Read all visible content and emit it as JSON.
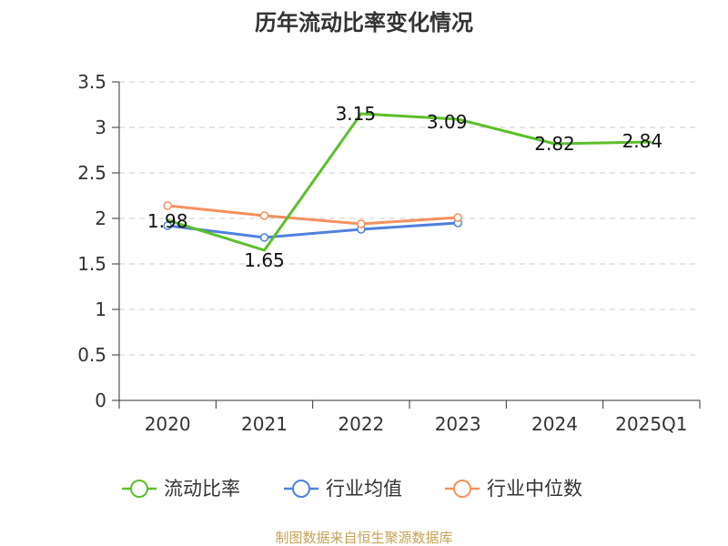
{
  "chart_data": {
    "type": "line",
    "title": "历年流动比率变化情况",
    "categories": [
      "2020",
      "2021",
      "2022",
      "2023",
      "2024",
      "2025Q1"
    ],
    "ylim": [
      0,
      3.5
    ],
    "yticks": [
      "0",
      "0.5",
      "1",
      "1.5",
      "2",
      "2.5",
      "3",
      "3.5"
    ],
    "grid": true,
    "legend_position": "bottom",
    "series": [
      {
        "name": "流动比率",
        "color": "#5cbf2a",
        "values": [
          1.98,
          1.65,
          3.15,
          3.09,
          2.82,
          2.84
        ],
        "labels": [
          "1.98",
          "1.65",
          "3.15",
          "3.09",
          "2.82",
          "2.84"
        ]
      },
      {
        "name": "行业均值",
        "color": "#4f81db",
        "values": [
          1.92,
          1.79,
          1.88,
          1.95,
          null,
          null
        ]
      },
      {
        "name": "行业中位数",
        "color": "#f4915e",
        "values": [
          2.14,
          2.03,
          1.94,
          2.01,
          null,
          null
        ]
      }
    ]
  },
  "footer": {
    "source": "制图数据来自恒生聚源数据库"
  }
}
